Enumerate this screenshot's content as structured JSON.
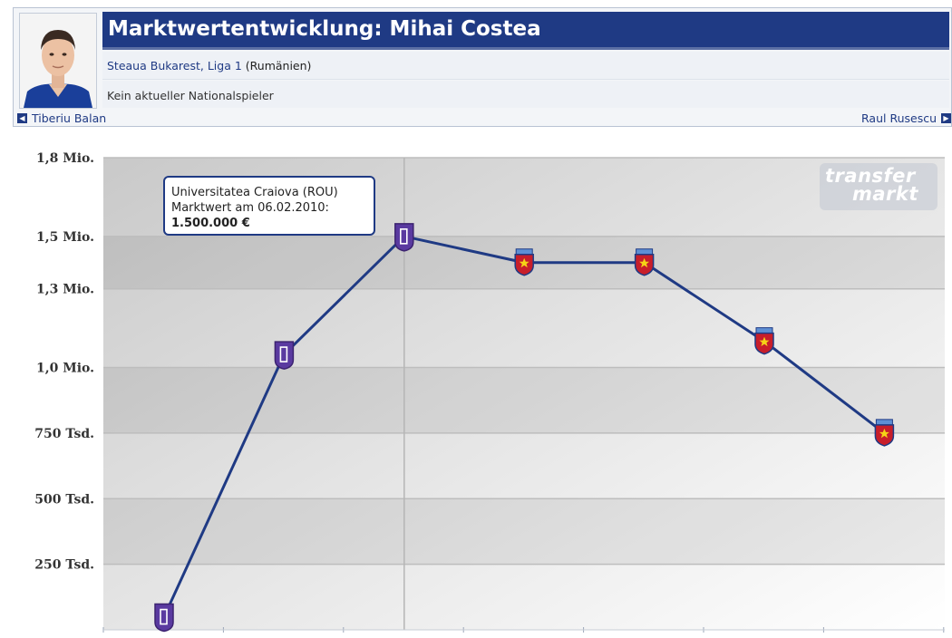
{
  "header": {
    "title": "Marktwertentwicklung: Mihai Costea",
    "club_link": "Steaua Bukarest, Liga 1",
    "club_country": "(Rumänien)",
    "national_status": "Kein aktueller Nationalspieler",
    "prev_player": "Tiberiu Balan",
    "next_player": "Raul Rusescu"
  },
  "colors": {
    "header_bar": "#1f3a84",
    "line": "#1f3a84",
    "craiova_badge": "#5a3aa0",
    "steaua_badge": "#c81e2a"
  },
  "tooltip": {
    "club": "Universitatea Craiova (ROU)",
    "date_label": "Marktwert am 06.02.2010:",
    "value": "1.500.000 €"
  },
  "watermark": {
    "line1": "transfer",
    "line2": "markt"
  },
  "chart_data": {
    "type": "line",
    "title": "",
    "xlabel": "",
    "ylabel": "",
    "ylim": [
      0,
      1800000
    ],
    "yticks": [
      {
        "value": 1800000,
        "label": "1,8 Mio."
      },
      {
        "value": 1500000,
        "label": "1,5 Mio."
      },
      {
        "value": 1300000,
        "label": "1,3 Mio."
      },
      {
        "value": 1000000,
        "label": "1,0 Mio."
      },
      {
        "value": 750000,
        "label": "750 Tsd."
      },
      {
        "value": 500000,
        "label": "500 Tsd."
      },
      {
        "value": 250000,
        "label": "250 Tsd."
      }
    ],
    "grid": true,
    "series": [
      {
        "values": [
          50000,
          1050000,
          1500000,
          1400000,
          1400000,
          1100000,
          750000
        ],
        "clubs": [
          "Universitatea Craiova",
          "Universitatea Craiova",
          "Universitatea Craiova",
          "Steaua Bukarest",
          "Steaua Bukarest",
          "Steaua Bukarest",
          "Steaua Bukarest"
        ]
      }
    ]
  }
}
